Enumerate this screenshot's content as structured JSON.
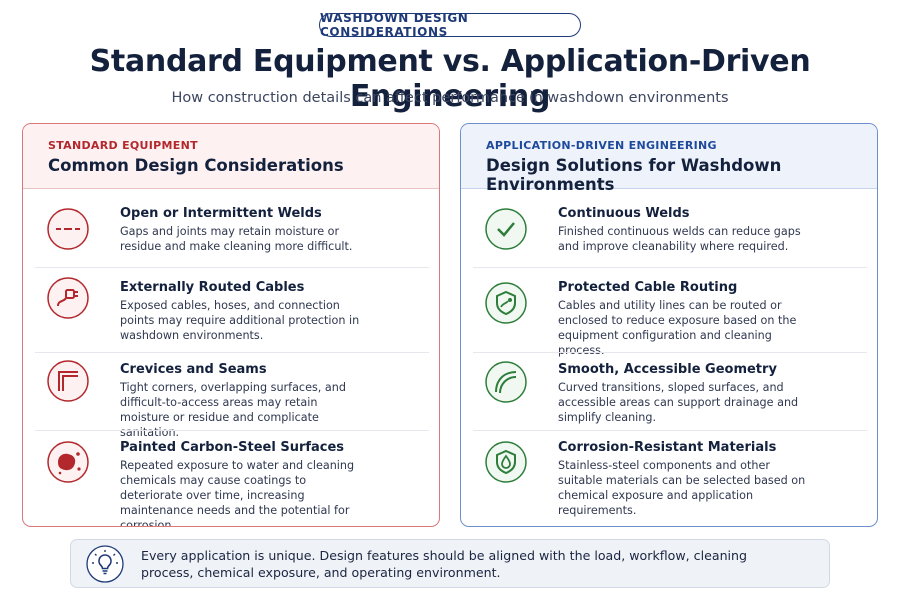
{
  "badge": "WASHDOWN DESIGN CONSIDERATIONS",
  "header": {
    "title": "Standard Equipment vs. Application-Driven Engineering",
    "subtitle": "How construction details can affect performance in washdown environments"
  },
  "left_panel": {
    "eyebrow": "STANDARD EQUIPMENT",
    "heading": "Common Design Considerations",
    "items": [
      {
        "title": "Open or Intermittent Welds",
        "text": "Gaps and joints may retain moisture or residue and make cleaning more difficult."
      },
      {
        "title": "Externally Routed Cables",
        "text": "Exposed cables, hoses, and connection points may require additional protection in washdown environments."
      },
      {
        "title": "Crevices and Seams",
        "text": "Tight corners, overlapping surfaces, and difficult-to-access areas may retain moisture or residue and complicate sanitation."
      },
      {
        "title": "Painted Carbon-Steel Surfaces",
        "text": "Repeated exposure to water and cleaning chemicals may cause coatings to deteriorate over time, increasing maintenance needs and the potential for corrosion."
      }
    ]
  },
  "right_panel": {
    "eyebrow": "APPLICATION-DRIVEN ENGINEERING",
    "heading": "Design Solutions for Washdown Environments",
    "items": [
      {
        "title": "Continuous Welds",
        "text": "Finished continuous welds can reduce gaps and improve cleanability where required."
      },
      {
        "title": "Protected Cable Routing",
        "text": "Cables and utility lines can be routed or enclosed to reduce exposure based on the equipment configuration and cleaning process."
      },
      {
        "title": "Smooth, Accessible Geometry",
        "text": "Curved transitions, sloped surfaces, and accessible areas can support drainage and simplify cleaning."
      },
      {
        "title": "Corrosion-Resistant Materials",
        "text": "Stainless-steel components and other suitable materials can be selected based on chemical exposure and application requirements."
      }
    ]
  },
  "footer": {
    "note": "Every application is unique. Design features should be aligned with the load, workflow, cleaning process, chemical exposure, and operating environment."
  }
}
